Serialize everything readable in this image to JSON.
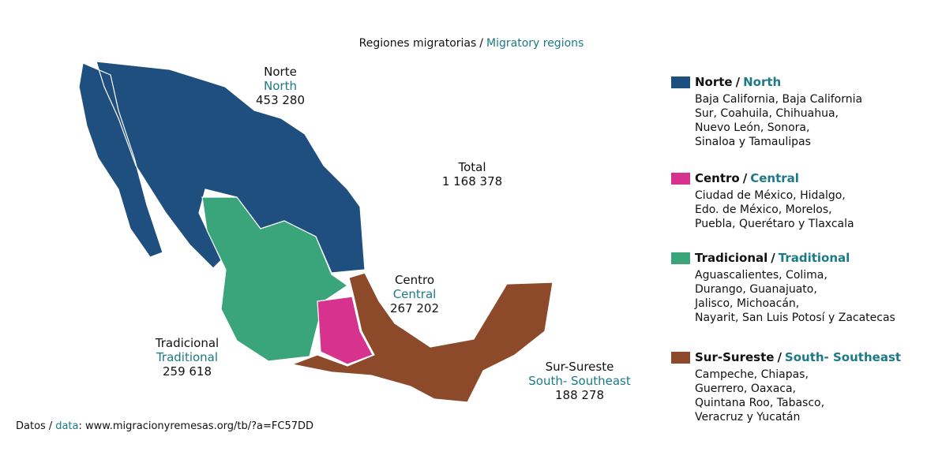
{
  "title": {
    "es": "Regiones migratorias",
    "en": "Migratory regions"
  },
  "separator": "/",
  "total": {
    "label": "Total",
    "value": "1 168 378"
  },
  "regions": [
    {
      "es": "Norte",
      "en": "North",
      "count": "453 280",
      "color": "#1f4f7e",
      "states": [
        "Baja California, Baja California",
        "Sur, Coahuila, Chihuahua,",
        "Nuevo León, Sonora,",
        "Sinaloa y Tamaulipas"
      ]
    },
    {
      "es": "Centro",
      "en": "Central",
      "count": "267 202",
      "color": "#d7338e",
      "states": [
        "Ciudad de México, Hidalgo,",
        "Edo. de México, Morelos,",
        "Puebla, Querétaro y Tlaxcala"
      ]
    },
    {
      "es": "Tradicional",
      "en": "Traditional",
      "count": "259 618",
      "color": "#3aa57b",
      "states": [
        "Aguascalientes, Colima,",
        "Durango, Guanajuato,",
        "Jalisco, Michoacán,",
        "Nayarit, San Luis Potosí y Zacatecas"
      ]
    },
    {
      "es": "Sur-Sureste",
      "en": "South- Southeast",
      "count": "188 278",
      "color": "#8c4a2b",
      "states": [
        "Campeche, Chiapas,",
        "Guerrero, Oaxaca,",
        "Quintana Roo, Tabasco,",
        "Veracruz y Yucatán"
      ]
    }
  ],
  "source": {
    "es": "Datos",
    "en": "data",
    "delimiter": ":",
    "url": "www.migracionyremesas.org/tb/?a=FC57DD"
  }
}
